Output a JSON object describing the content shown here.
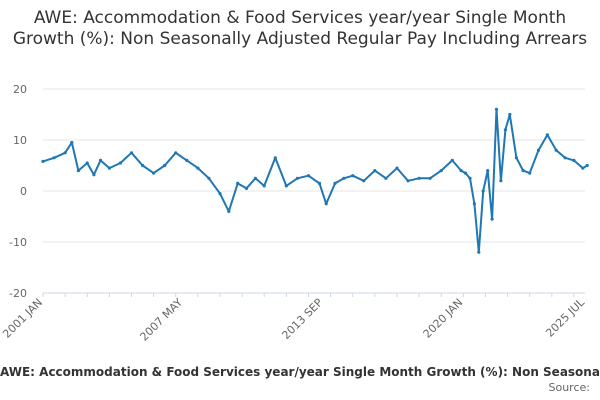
{
  "chart_data": {
    "type": "line",
    "title": "AWE: Accommodation & Food Services year/year Single Month Growth (%): Non Seasonally Adjusted Regular Pay Including Arrears",
    "xlabel": "",
    "ylabel": "",
    "ylim": [
      -20,
      20
    ],
    "y_ticks": [
      "20",
      "10",
      "0",
      "-10",
      "-20"
    ],
    "x_ticks": [
      "2001 JAN",
      "2007 MAY",
      "2013 SEP",
      "2020 JAN",
      "2025 JUL"
    ],
    "grid": "horizontal",
    "legend": "bottom",
    "legend_text": "AWE: Accommodation & Food Services year/year Single Month Growth (%): Non Seasonally Adjusted Regular Pay Including Arrears",
    "source_label": "Source:",
    "color": "#1f77b4",
    "x": [
      2001.0,
      2001.5,
      2002.0,
      2002.3,
      2002.6,
      2003.0,
      2003.3,
      2003.6,
      2004.0,
      2004.5,
      2005.0,
      2005.5,
      2006.0,
      2006.5,
      2007.0,
      2007.5,
      2008.0,
      2008.5,
      2009.0,
      2009.4,
      2009.8,
      2010.2,
      2010.6,
      2011.0,
      2011.5,
      2012.0,
      2012.5,
      2013.0,
      2013.5,
      2013.8,
      2014.2,
      2014.6,
      2015.0,
      2015.5,
      2016.0,
      2016.5,
      2017.0,
      2017.5,
      2018.0,
      2018.5,
      2019.0,
      2019.5,
      2019.9,
      2020.1,
      2020.3,
      2020.5,
      2020.7,
      2020.9,
      2021.1,
      2021.3,
      2021.5,
      2021.7,
      2021.9,
      2022.1,
      2022.4,
      2022.7,
      2023.0,
      2023.4,
      2023.8,
      2024.2,
      2024.6,
      2025.0,
      2025.4,
      2025.6
    ],
    "values": [
      5.8,
      6.5,
      7.5,
      9.5,
      4.0,
      5.5,
      3.2,
      6.0,
      4.5,
      5.5,
      7.5,
      5.0,
      3.5,
      5.0,
      7.5,
      6.0,
      4.5,
      2.5,
      -0.5,
      -4.0,
      1.5,
      0.5,
      2.5,
      1.0,
      6.5,
      1.0,
      2.5,
      3.0,
      1.5,
      -2.5,
      1.5,
      2.5,
      3.0,
      2.0,
      4.0,
      2.5,
      4.5,
      2.0,
      2.5,
      2.5,
      4.0,
      6.0,
      4.0,
      3.5,
      2.5,
      -2.5,
      -12.0,
      0.0,
      4.0,
      -5.5,
      16.0,
      2.0,
      12.0,
      15.0,
      6.5,
      4.0,
      3.5,
      8.0,
      11.0,
      8.0,
      6.5,
      6.0,
      4.5,
      5.0
    ]
  }
}
